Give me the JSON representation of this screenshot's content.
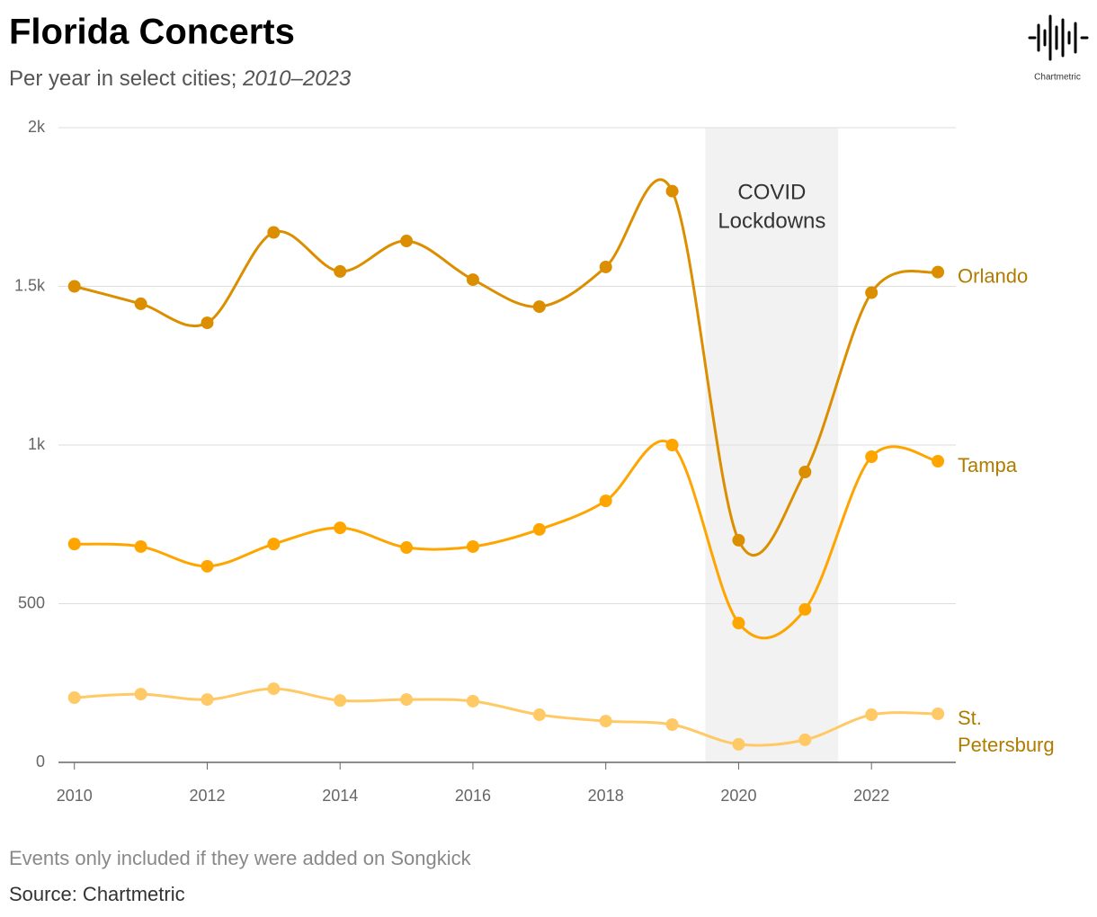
{
  "chart_data": {
    "type": "line",
    "title": "Florida Concerts",
    "subtitle": "Per year in select cities;",
    "subtitle_period": "2010–2023",
    "note": "Events only included if they were added on Songkick",
    "source": "Source: Chartmetric",
    "logo": "Chartmetric",
    "x": [
      2010,
      2011,
      2012,
      2013,
      2014,
      2015,
      2016,
      2017,
      2018,
      2019,
      2020,
      2021,
      2022,
      2023
    ],
    "series": [
      {
        "name": "Orlando",
        "color": "#db8f00",
        "values": [
          1500,
          1445,
          1385,
          1670,
          1547,
          1643,
          1521,
          1436,
          1561,
          1800,
          700,
          915,
          1480,
          1545
        ]
      },
      {
        "name": "Tampa",
        "color": "#ffa500",
        "values": [
          688,
          680,
          618,
          688,
          739,
          677,
          680,
          734,
          824,
          1000,
          439,
          482,
          963,
          949
        ]
      },
      {
        "name": "St. Petersburg",
        "color": "#ffc966",
        "values": [
          204,
          215,
          198,
          232,
          195,
          198,
          193,
          150,
          130,
          119,
          57,
          71,
          150,
          153
        ]
      }
    ],
    "label_color": "#b07c00",
    "annotation": {
      "lines": [
        "COVID",
        "Lockdowns"
      ],
      "x_range": [
        2019.5,
        2021.5
      ],
      "color": "#f2f2f2"
    },
    "xlim": [
      2009.76,
      2023.27
    ],
    "xticks": [
      2010,
      2012,
      2014,
      2016,
      2018,
      2020,
      2022
    ],
    "ylim": [
      0,
      2000
    ],
    "yticks": [
      0,
      500,
      {
        "value": 1000,
        "label": "1k"
      },
      {
        "value": 1500,
        "label": "1.5k"
      },
      {
        "value": 2000,
        "label": "2k"
      }
    ],
    "grid": true
  }
}
